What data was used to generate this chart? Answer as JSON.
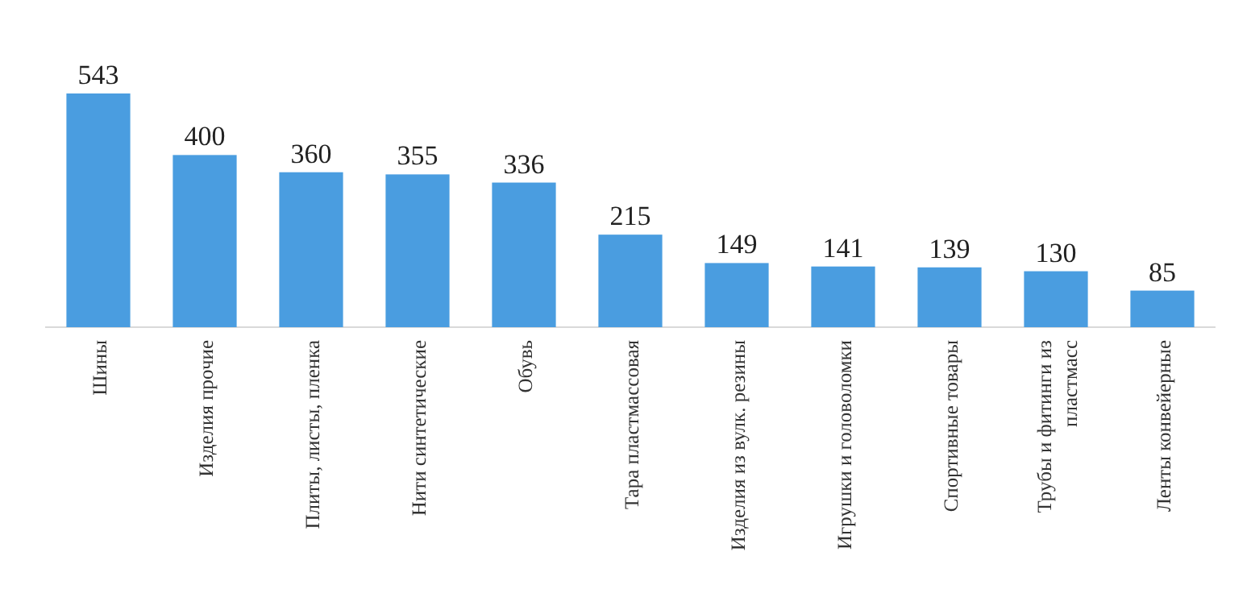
{
  "chart_data": {
    "type": "bar",
    "categories": [
      "Шины",
      "Изделия прочие",
      "Плиты, листы, пленка",
      "Нити синтетические",
      "Обувь",
      "Тара пластмассовая",
      "Изделия из вулк. резины",
      "Игрушки и головоломки",
      "Спортивные товары",
      "Трубы и фитинги из пластмасс",
      "Ленты конвейерные"
    ],
    "values": [
      543,
      400,
      360,
      355,
      336,
      215,
      149,
      141,
      139,
      130,
      85
    ],
    "color": "#4a9de0",
    "data_labels": true
  }
}
